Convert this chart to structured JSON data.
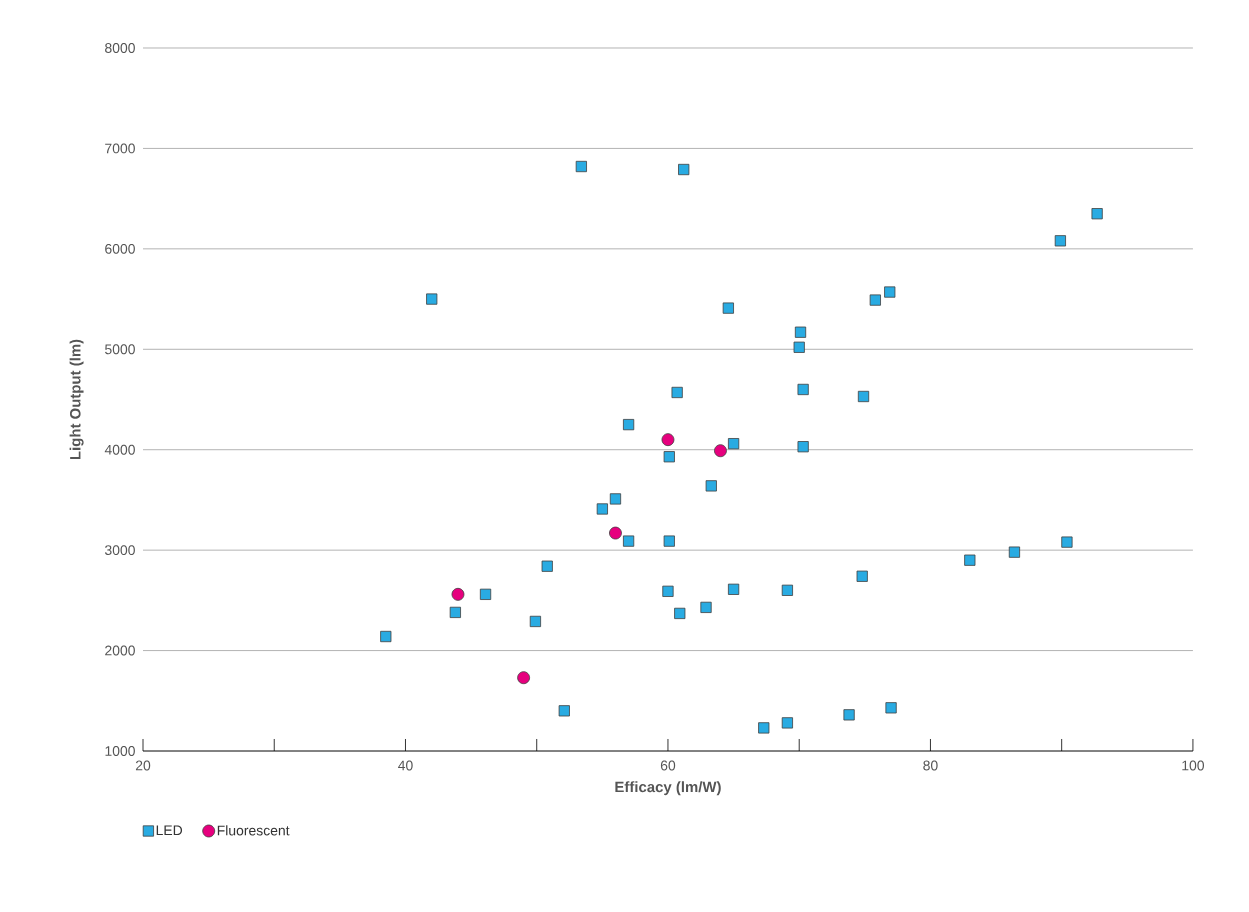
{
  "chart_data": {
    "type": "scatter",
    "xlabel": "Efficacy (lm/W)",
    "ylabel": "Light Output (lm)",
    "xlim": [
      20,
      100
    ],
    "ylim": [
      1000,
      8000
    ],
    "xticks": [
      20,
      {
        "value": 30,
        "label": null
      },
      40,
      {
        "value": 50,
        "label": null
      },
      60,
      {
        "value": 70,
        "label": null
      },
      80,
      {
        "value": 90,
        "label": null
      },
      100
    ],
    "yticks": [
      1000,
      2000,
      3000,
      4000,
      5000,
      6000,
      7000,
      8000
    ],
    "grid": "y",
    "legend": "bottom",
    "series": [
      {
        "name": "LED",
        "color": "#29abe2",
        "marker": "square",
        "x": [
          38.5,
          42.0,
          43.8,
          46.1,
          49.9,
          50.8,
          52.1,
          53.4,
          55.0,
          56.0,
          57.0,
          57.0,
          60.0,
          60.1,
          60.1,
          60.7,
          60.9,
          61.2,
          62.9,
          63.3,
          64.6,
          65.0,
          65.0,
          67.3,
          69.1,
          69.1,
          70.0,
          70.1,
          70.3,
          70.3,
          73.8,
          74.8,
          74.9,
          75.8,
          76.9,
          77.0,
          83.0,
          86.4,
          90.4,
          89.9,
          92.7
        ],
        "values": [
          2140,
          5500,
          2380,
          2560,
          2290,
          2840,
          1400,
          6820,
          3410,
          3510,
          4250,
          3090,
          2590,
          3090,
          3930,
          4570,
          2370,
          6790,
          2430,
          3640,
          5410,
          4060,
          2610,
          1230,
          1280,
          2600,
          5020,
          5170,
          4600,
          4030,
          1360,
          2740,
          4530,
          5490,
          5570,
          1430,
          2900,
          2980,
          3080,
          6080,
          6350
        ]
      },
      {
        "name": "Fluorescent",
        "color": "#e6007e",
        "marker": "circle",
        "x": [
          44.0,
          49.0,
          56.0,
          60.0,
          64.0
        ],
        "values": [
          2560,
          1730,
          3170,
          4100,
          3990
        ]
      }
    ]
  }
}
